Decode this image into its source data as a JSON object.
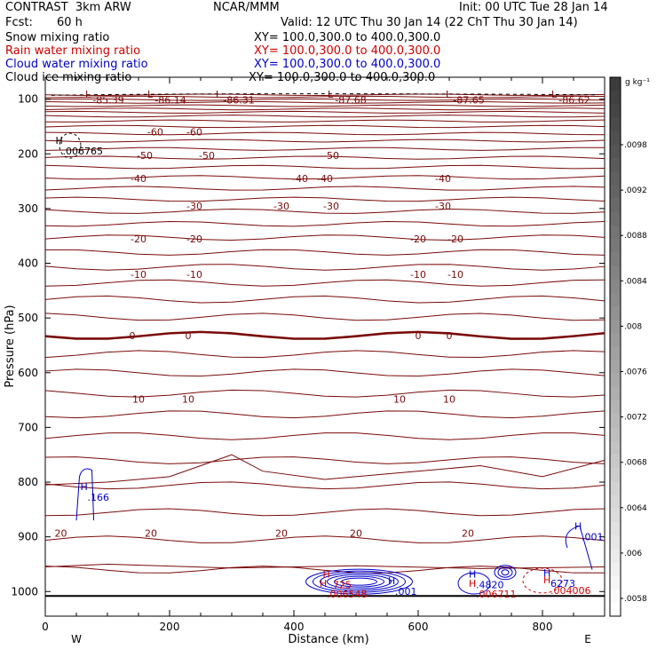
{
  "header": {
    "title_left": "CONTRAST  3km ARW",
    "title_center": "NCAR/MMM",
    "init": "Init: 00 UTC Tue 28 Jan 14",
    "fcst_label": "Fcst:",
    "fcst_value": "60 h",
    "valid": "Valid: 12 UTC Thu 30 Jan 14 (22 ChT Thu 30 Jan 14)",
    "fields": [
      {
        "name": "Snow mixing ratio",
        "xy": "XY= 100.0,300.0 to 400.0,300.0",
        "color": "#000000"
      },
      {
        "name": "Rain water mixing ratio",
        "xy": "XY= 100.0,300.0 to 400.0,300.0",
        "color": "#d00000"
      },
      {
        "name": "Cloud water mixing ratio",
        "xy": "XY= 100.0,300.0 to 400.0,300.0",
        "color": "#0000cc"
      },
      {
        "name": "Cloud ice mixing ratio",
        "xy": "XY= 100.0,300.0 to 400.0,300.0",
        "color": "#000000"
      }
    ]
  },
  "chart_data": {
    "type": "cross-section contour",
    "xlabel": "Distance (km)",
    "ylabel": "Pressure (hPa)",
    "xlim": [
      0,
      900
    ],
    "ylim": [
      1045,
      60
    ],
    "x_ticks": [
      0,
      200,
      400,
      600,
      800
    ],
    "y_ticks": [
      100,
      200,
      300,
      400,
      500,
      600,
      700,
      800,
      900,
      1000
    ],
    "x_end_labels": {
      "left": "W",
      "right": "E"
    },
    "isotherm_color": "#7a0a0a",
    "temperature_contours": [
      {
        "value": -60,
        "labels": [
          {
            "x": 177,
            "label": "-60"
          },
          {
            "x": 240,
            "label": "-60"
          }
        ]
      },
      {
        "value": -50,
        "labels": [
          {
            "x": 160,
            "label": "-50"
          },
          {
            "x": 260,
            "label": "-50"
          },
          {
            "x": 460,
            "label": "-50"
          }
        ]
      },
      {
        "value": -40,
        "labels": [
          {
            "x": 150,
            "label": "-40"
          },
          {
            "x": 410,
            "label": "-40"
          },
          {
            "x": 450,
            "label": "-40"
          },
          {
            "x": 640,
            "label": "-40"
          }
        ]
      },
      {
        "value": -30,
        "labels": [
          {
            "x": 240,
            "label": "-30"
          },
          {
            "x": 380,
            "label": "-30"
          },
          {
            "x": 460,
            "label": "-30"
          },
          {
            "x": 640,
            "label": "-30"
          }
        ]
      },
      {
        "value": -20,
        "labels": [
          {
            "x": 150,
            "label": "-20"
          },
          {
            "x": 240,
            "label": "-20"
          },
          {
            "x": 600,
            "label": "-20"
          },
          {
            "x": 660,
            "label": "-20"
          }
        ]
      },
      {
        "value": -10,
        "labels": [
          {
            "x": 150,
            "label": "-10"
          },
          {
            "x": 240,
            "label": "-10"
          },
          {
            "x": 600,
            "label": "-10"
          },
          {
            "x": 660,
            "label": "-10"
          }
        ]
      },
      {
        "value": 0,
        "labels": [
          {
            "x": 140,
            "label": "0"
          },
          {
            "x": 230,
            "label": "0"
          },
          {
            "x": 600,
            "label": "0"
          },
          {
            "x": 650,
            "label": "0"
          }
        ]
      },
      {
        "value": 10,
        "labels": [
          {
            "x": 150,
            "label": "10"
          },
          {
            "x": 230,
            "label": "10"
          },
          {
            "x": 570,
            "label": "10"
          },
          {
            "x": 650,
            "label": "10"
          }
        ]
      },
      {
        "value": 20,
        "labels": [
          {
            "x": 25,
            "label": "20"
          },
          {
            "x": 170,
            "label": "20"
          },
          {
            "x": 380,
            "label": "20"
          },
          {
            "x": 500,
            "label": "20"
          },
          {
            "x": 680,
            "label": "20"
          }
        ]
      }
    ],
    "low_labels": [
      {
        "x": 70,
        "label": "-85.39"
      },
      {
        "x": 170,
        "label": "-86.14"
      },
      {
        "x": 280,
        "label": "-86.31"
      },
      {
        "x": 460,
        "label": "-87.68"
      },
      {
        "x": 650,
        "label": "-87.65"
      },
      {
        "x": 820,
        "label": "-86.62"
      }
    ],
    "highs": [
      {
        "x": 25,
        "p": 185,
        "label": ".006765",
        "color": "#000000"
      },
      {
        "x": 65,
        "p": 818,
        "label": ".166",
        "color": "#0000cc"
      },
      {
        "x": 455,
        "p": 978,
        "label": ".725",
        "color": "#d00000"
      },
      {
        "x": 450,
        "p": 995,
        "label": ".006548",
        "color": "#d00000"
      },
      {
        "x": 560,
        "p": 990,
        "label": ".001",
        "color": "#0000cc"
      },
      {
        "x": 690,
        "p": 978,
        "label": ".4820",
        "color": "#0000cc"
      },
      {
        "x": 690,
        "p": 995,
        "label": ".006711",
        "color": "#d00000"
      },
      {
        "x": 810,
        "p": 975,
        "label": "6273",
        "color": "#0000cc"
      },
      {
        "x": 810,
        "p": 988,
        "label": ".004006",
        "color": "#d00000"
      },
      {
        "x": 860,
        "p": 890,
        "label": ".001",
        "color": "#0000cc"
      }
    ],
    "colorbar": {
      "unit": "g kg⁻¹",
      "labels": [
        ".0098",
        ".0092",
        ".0088",
        ".0084",
        ".008",
        ".0076",
        ".0072",
        ".0068",
        ".0064",
        ".006",
        ".0058"
      ]
    }
  }
}
